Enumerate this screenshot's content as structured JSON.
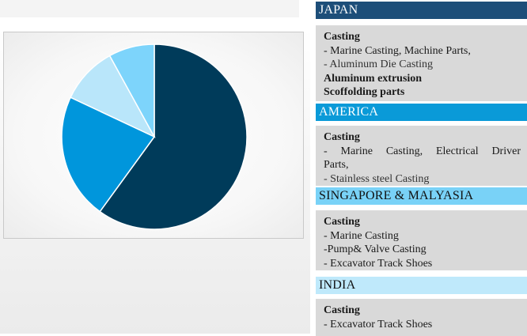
{
  "chart_data": {
    "type": "pie",
    "values": [
      60,
      22,
      10,
      8
    ],
    "colors": [
      "#003b5a",
      "#0096dc",
      "#b9e6fa",
      "#7dd4fb"
    ],
    "title": ""
  },
  "regions": [
    {
      "name": "JAPAN",
      "header_bg": "#1d4e79",
      "header_color": "#ffffff",
      "lines": [
        {
          "text": "Casting",
          "bold": true
        },
        {
          "text": "- Marine Casting, Machine Parts,",
          "bold": false
        },
        {
          "text": "- Aluminum Die Casting",
          "bold": false
        },
        {
          "text": "Aluminum extrusion",
          "bold": true
        },
        {
          "text": "Scoffolding parts",
          "bold": true
        }
      ]
    },
    {
      "name": "AMERICA",
      "header_bg": "#0a9ad8",
      "header_color": "#ffffff",
      "lines": [
        {
          "text": "Casting",
          "bold": true
        },
        {
          "text": "- Marine Casting, Electrical Driver",
          "bold": false,
          "justify": true
        },
        {
          "text": "Parts,",
          "bold": false
        },
        {
          "text": "- Stainless steel Casting",
          "bold": false
        }
      ]
    },
    {
      "name": "SINGAPORE & MALYASIA",
      "header_bg": "#79d2f7",
      "header_color": "#111111",
      "lines": [
        {
          "text": "Casting",
          "bold": true
        },
        {
          "text": "- Marine Casting",
          "bold": false
        },
        {
          "text": "-Pump& Valve Casting",
          "bold": false
        },
        {
          "text": "- Excavator Track Shoes",
          "bold": false
        }
      ]
    },
    {
      "name": "INDIA",
      "header_bg": "#bfe9fb",
      "header_color": "#111111",
      "lines": [
        {
          "text": "Casting",
          "bold": true
        },
        {
          "text": "- Excavator Track Shoes",
          "bold": false
        }
      ]
    }
  ]
}
